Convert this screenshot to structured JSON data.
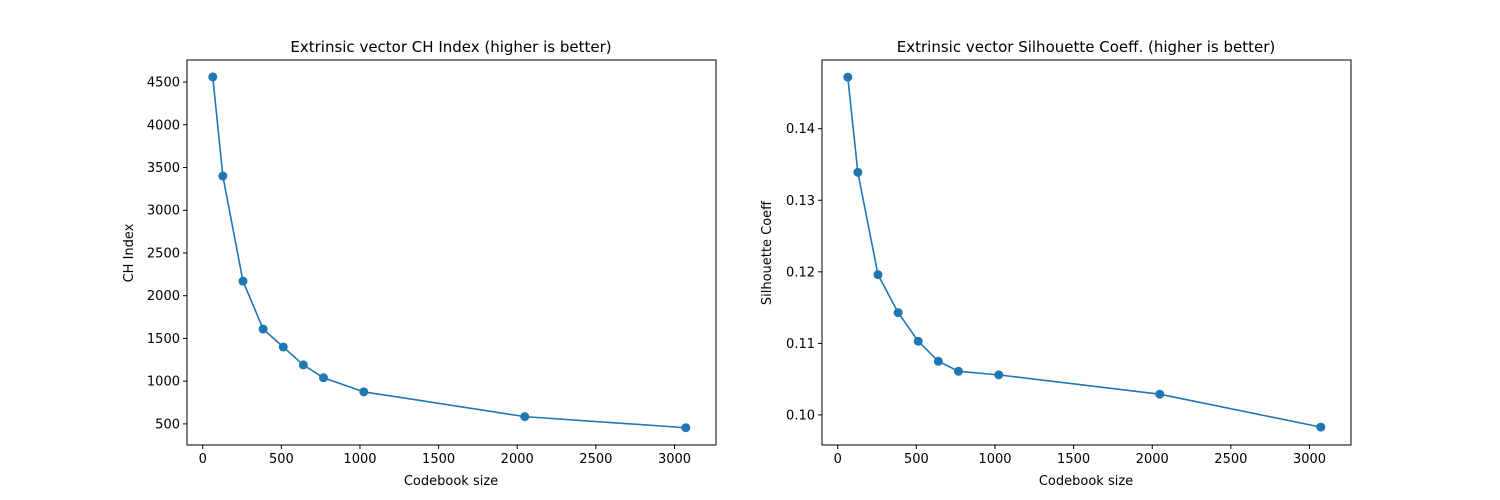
{
  "chart_data": [
    {
      "type": "line",
      "title": "Extrinsic vector CH Index (higher is better)",
      "xlabel": "Codebook size",
      "ylabel": "CH Index",
      "xlim": [
        -100,
        3264
      ],
      "ylim": [
        253,
        4758
      ],
      "xticks": [
        0,
        500,
        1000,
        1500,
        2000,
        2500,
        3000
      ],
      "xtick_labels": [
        "0",
        "500",
        "1000",
        "1500",
        "2000",
        "2500",
        "3000"
      ],
      "yticks": [
        500,
        1000,
        1500,
        2000,
        2500,
        3000,
        3500,
        4000,
        4500
      ],
      "ytick_labels": [
        "500",
        "1000",
        "1500",
        "2000",
        "2500",
        "3000",
        "3500",
        "4000",
        "4500"
      ],
      "grid": false,
      "color": "#1f77b4",
      "marker": "circle",
      "x": [
        64,
        128,
        256,
        384,
        512,
        640,
        768,
        1024,
        2048,
        3072
      ],
      "y": [
        4560,
        3400,
        2170,
        1610,
        1400,
        1190,
        1040,
        875,
        585,
        455
      ]
    },
    {
      "type": "line",
      "title": "Extrinsic vector Silhouette Coeff. (higher is better)",
      "xlabel": "Codebook size",
      "ylabel": "Silhouette Coeff",
      "xlim": [
        -100,
        3264
      ],
      "ylim": [
        0.0958,
        0.1496
      ],
      "xticks": [
        0,
        500,
        1000,
        1500,
        2000,
        2500,
        3000
      ],
      "xtick_labels": [
        "0",
        "500",
        "1000",
        "1500",
        "2000",
        "2500",
        "3000"
      ],
      "yticks": [
        0.1,
        0.11,
        0.12,
        0.13,
        0.14
      ],
      "ytick_labels": [
        "0.10",
        "0.11",
        "0.12",
        "0.13",
        "0.14"
      ],
      "grid": false,
      "color": "#1f77b4",
      "marker": "circle",
      "x": [
        64,
        128,
        256,
        384,
        512,
        640,
        768,
        1024,
        2048,
        3072
      ],
      "y": [
        0.1472,
        0.1339,
        0.1196,
        0.1143,
        0.1103,
        0.1075,
        0.1061,
        0.1056,
        0.1029,
        0.0983
      ]
    }
  ]
}
